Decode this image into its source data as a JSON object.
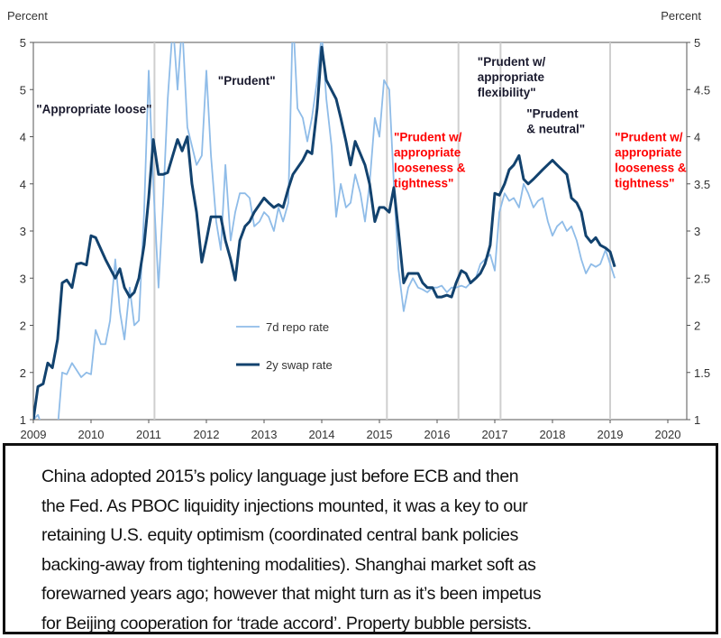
{
  "chart_data": {
    "type": "line",
    "left_axis": {
      "title": "Percent",
      "tick_labels": [
        "5",
        "5",
        "4",
        "4",
        "3",
        "3",
        "2",
        "2",
        "1"
      ]
    },
    "right_axis": {
      "title": "Percent",
      "tick_labels": [
        "5",
        "4.5",
        "4",
        "3.5",
        "3",
        "2.5",
        "2",
        "1.5",
        "1"
      ],
      "ylim": [
        1,
        5
      ]
    },
    "x_tick_labels": [
      "2009",
      "2010",
      "2011",
      "2012",
      "2013",
      "2014",
      "2015",
      "2016",
      "2017",
      "2018",
      "2019",
      "2020"
    ],
    "xlim": [
      2009,
      2020.3
    ],
    "policy_change_lines": [
      2011.1,
      2015.13,
      2016.37,
      2017.1,
      2019.0
    ],
    "annotations": [
      {
        "lines": [
          "\"Appropriate loose\""
        ],
        "color": "#1a1a2e",
        "at": [
          2009.05,
          4.25
        ]
      },
      {
        "lines": [
          "\"Prudent\""
        ],
        "color": "#1a1a2e",
        "at": [
          2012.2,
          4.55
        ]
      },
      {
        "lines": [
          "\"Prudent w/",
          "appropriate",
          "looseness  &",
          "tightness\""
        ],
        "color": "#ff0000",
        "at": [
          2015.25,
          3.95
        ]
      },
      {
        "lines": [
          "\"Prudent w/",
          "appropriate",
          "flexibility\""
        ],
        "color": "#1a1a2e",
        "at": [
          2016.7,
          4.75
        ]
      },
      {
        "lines": [
          "\"Prudent",
          "& neutral\""
        ],
        "color": "#1a1a2e",
        "at": [
          2017.55,
          4.2
        ]
      },
      {
        "lines": [
          "\"Prudent w/",
          "appropriate",
          "looseness  &",
          "tightness\""
        ],
        "color": "#ff0000",
        "at": [
          2019.08,
          3.95
        ]
      }
    ],
    "series": [
      {
        "name": "7d repo rate",
        "color": "#8fbce8",
        "width": 1.8,
        "x": [
          2009.0,
          2009.08,
          2009.17,
          2009.42,
          2009.5,
          2009.58,
          2009.67,
          2009.83,
          2009.92,
          2010.0,
          2010.08,
          2010.17,
          2010.25,
          2010.33,
          2010.42,
          2010.5,
          2010.58,
          2010.67,
          2010.75,
          2010.83,
          2010.92,
          2011.0,
          2011.08,
          2011.17,
          2011.25,
          2011.33,
          2011.42,
          2011.5,
          2011.58,
          2011.67,
          2011.75,
          2011.83,
          2011.92,
          2012.0,
          2012.08,
          2012.17,
          2012.25,
          2012.33,
          2012.42,
          2012.5,
          2012.58,
          2012.67,
          2012.75,
          2012.83,
          2012.92,
          2013.0,
          2013.08,
          2013.17,
          2013.25,
          2013.33,
          2013.42,
          2013.5,
          2013.58,
          2013.67,
          2013.75,
          2013.83,
          2013.92,
          2014.0,
          2014.08,
          2014.17,
          2014.25,
          2014.33,
          2014.42,
          2014.5,
          2014.58,
          2014.67,
          2014.75,
          2014.83,
          2014.92,
          2015.0,
          2015.08,
          2015.17,
          2015.25,
          2015.33,
          2015.42,
          2015.5,
          2015.58,
          2015.67,
          2015.75,
          2015.83,
          2015.92,
          2016.0,
          2016.08,
          2016.17,
          2016.25,
          2016.33,
          2016.42,
          2016.5,
          2016.58,
          2016.67,
          2016.75,
          2016.83,
          2016.92,
          2017.0,
          2017.08,
          2017.17,
          2017.25,
          2017.33,
          2017.42,
          2017.5,
          2017.58,
          2017.67,
          2017.75,
          2017.83,
          2017.92,
          2018.0,
          2018.08,
          2018.17,
          2018.25,
          2018.33,
          2018.42,
          2018.5,
          2018.58,
          2018.67,
          2018.75,
          2018.83,
          2018.92,
          2019.08
        ],
        "values": [
          1.0,
          1.05,
          0.9,
          0.9,
          1.5,
          1.48,
          1.6,
          1.45,
          1.5,
          1.48,
          1.95,
          1.8,
          1.8,
          2.05,
          2.7,
          2.15,
          1.85,
          2.4,
          2.0,
          2.05,
          3.2,
          4.7,
          3.5,
          2.4,
          3.3,
          4.4,
          5.2,
          4.5,
          5.2,
          4.1,
          3.9,
          3.7,
          3.8,
          4.7,
          3.8,
          3.1,
          2.8,
          3.7,
          2.9,
          3.2,
          3.4,
          3.4,
          3.35,
          3.05,
          3.1,
          3.2,
          3.15,
          3.0,
          3.25,
          3.1,
          3.3,
          5.3,
          4.3,
          4.2,
          3.95,
          4.2,
          4.6,
          5.1,
          4.4,
          3.9,
          3.15,
          3.5,
          3.25,
          3.3,
          3.6,
          3.4,
          3.1,
          3.5,
          4.2,
          4.0,
          4.6,
          4.5,
          3.5,
          2.6,
          2.15,
          2.4,
          2.5,
          2.4,
          2.38,
          2.35,
          2.4,
          2.4,
          2.42,
          2.35,
          2.4,
          2.4,
          2.42,
          2.4,
          2.45,
          2.5,
          2.65,
          2.7,
          2.75,
          2.58,
          3.2,
          3.4,
          3.32,
          3.35,
          3.25,
          3.5,
          3.4,
          3.25,
          3.32,
          3.35,
          3.1,
          2.95,
          3.05,
          3.1,
          3.0,
          3.05,
          2.9,
          2.7,
          2.55,
          2.65,
          2.62,
          2.65,
          2.8,
          2.5
        ]
      },
      {
        "name": "2y swap rate",
        "color": "#12426e",
        "width": 3,
        "x": [
          2009.0,
          2009.08,
          2009.17,
          2009.25,
          2009.33,
          2009.42,
          2009.5,
          2009.58,
          2009.67,
          2009.75,
          2009.83,
          2009.92,
          2010.0,
          2010.08,
          2010.25,
          2010.42,
          2010.5,
          2010.58,
          2010.67,
          2010.75,
          2010.83,
          2010.92,
          2011.0,
          2011.08,
          2011.17,
          2011.25,
          2011.33,
          2011.5,
          2011.58,
          2011.67,
          2011.75,
          2011.83,
          2011.92,
          2012.0,
          2012.08,
          2012.17,
          2012.25,
          2012.33,
          2012.42,
          2012.5,
          2012.58,
          2012.67,
          2012.75,
          2012.83,
          2013.0,
          2013.08,
          2013.17,
          2013.25,
          2013.33,
          2013.42,
          2013.5,
          2013.67,
          2013.75,
          2013.83,
          2013.92,
          2014.0,
          2014.08,
          2014.25,
          2014.33,
          2014.42,
          2014.5,
          2014.58,
          2014.75,
          2014.83,
          2014.92,
          2015.0,
          2015.08,
          2015.17,
          2015.25,
          2015.33,
          2015.42,
          2015.5,
          2015.58,
          2015.67,
          2015.75,
          2015.83,
          2015.92,
          2016.0,
          2016.08,
          2016.17,
          2016.25,
          2016.33,
          2016.42,
          2016.5,
          2016.58,
          2016.67,
          2016.75,
          2016.83,
          2016.92,
          2017.0,
          2017.08,
          2017.17,
          2017.25,
          2017.33,
          2017.42,
          2017.5,
          2017.58,
          2017.67,
          2017.75,
          2017.83,
          2018.0,
          2018.08,
          2018.25,
          2018.33,
          2018.42,
          2018.5,
          2018.58,
          2018.67,
          2018.75,
          2018.83,
          2018.92,
          2019.0,
          2019.08
        ],
        "values": [
          1.0,
          1.35,
          1.38,
          1.6,
          1.55,
          1.85,
          2.45,
          2.48,
          2.4,
          2.65,
          2.66,
          2.64,
          2.95,
          2.93,
          2.7,
          2.5,
          2.6,
          2.4,
          2.3,
          2.35,
          2.5,
          2.85,
          3.35,
          3.97,
          3.6,
          3.6,
          3.62,
          3.97,
          3.85,
          4.0,
          3.5,
          3.2,
          2.67,
          2.9,
          3.15,
          3.15,
          3.15,
          2.9,
          2.7,
          2.48,
          2.9,
          3.05,
          3.1,
          3.2,
          3.35,
          3.3,
          3.25,
          3.28,
          3.25,
          3.45,
          3.6,
          3.75,
          3.85,
          3.82,
          4.3,
          4.95,
          4.6,
          4.4,
          4.2,
          3.95,
          3.7,
          3.95,
          3.7,
          3.5,
          3.1,
          3.25,
          3.25,
          3.2,
          3.46,
          3.0,
          2.45,
          2.55,
          2.55,
          2.55,
          2.45,
          2.4,
          2.4,
          2.3,
          2.3,
          2.32,
          2.3,
          2.45,
          2.58,
          2.55,
          2.45,
          2.5,
          2.55,
          2.65,
          2.85,
          3.4,
          3.38,
          3.5,
          3.65,
          3.7,
          3.8,
          3.55,
          3.5,
          3.55,
          3.6,
          3.65,
          3.75,
          3.7,
          3.6,
          3.35,
          3.3,
          3.2,
          2.95,
          2.88,
          2.93,
          2.85,
          2.82,
          2.78,
          2.62
        ]
      }
    ]
  },
  "caption": {
    "lines": [
      "China adopted 2015’s policy language just before ECB and then",
      "the Fed. As PBOC liquidity injections mounted, it was a key to our",
      "retaining U.S. equity optimism (coordinated central bank policies",
      "backing-away from tightening modalities). Shanghai market soft as",
      "forewarned years ago; however that might turn as it’s been impetus",
      "for Beijing cooperation for ‘trade accord’. Property bubble persists."
    ]
  }
}
